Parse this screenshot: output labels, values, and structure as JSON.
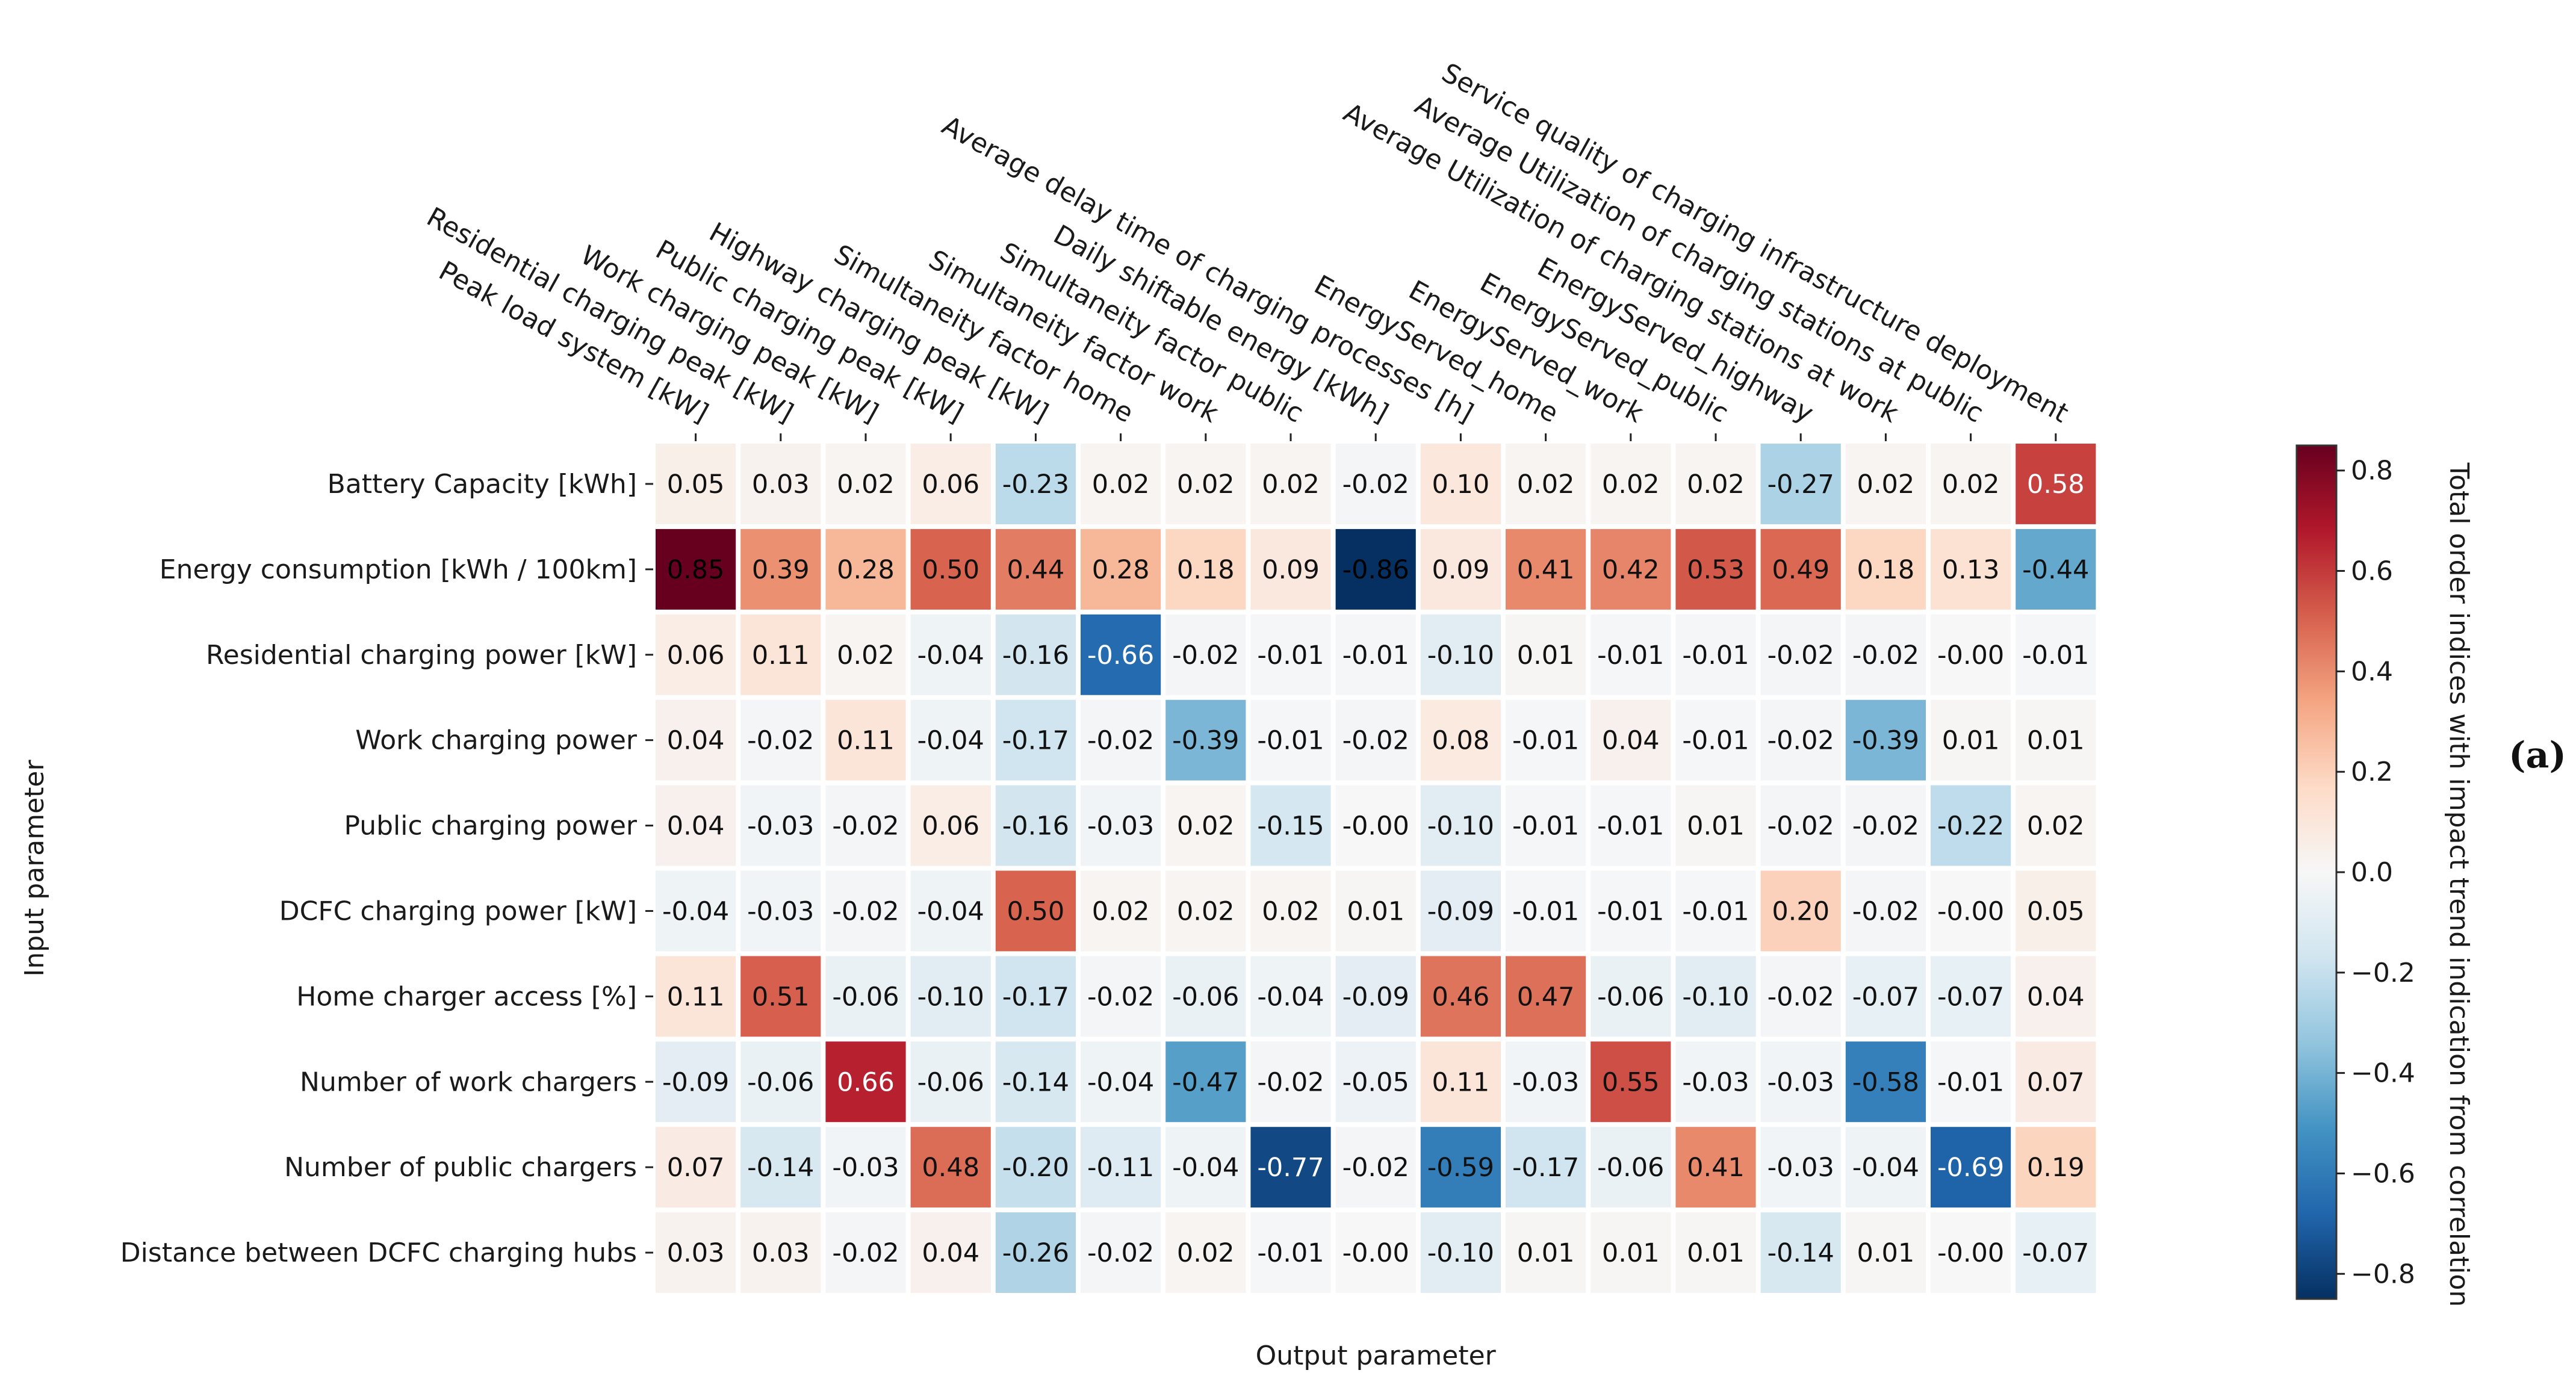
{
  "panel_label": "(a)",
  "chart_data": {
    "type": "heatmap",
    "xlabel": "Output parameter",
    "ylabel": "Input parameter",
    "colorbar_label": "Total order indices with impact trend indication from correlation",
    "colorbar_range": [
      -0.85,
      0.85
    ],
    "colorbar_ticks": [
      -0.8,
      -0.6,
      -0.4,
      -0.2,
      0.0,
      0.2,
      0.4,
      0.6,
      0.8
    ],
    "colorbar_tick_labels": [
      "−0.8",
      "−0.6",
      "−0.4",
      "−0.2",
      "0.0",
      "0.2",
      "0.4",
      "0.6",
      "0.8"
    ],
    "colormap": [
      "#053061",
      "#2166ac",
      "#4393c3",
      "#92c5de",
      "#d1e5f0",
      "#f7f7f7",
      "#fddbc7",
      "#f4a582",
      "#d6604d",
      "#b2182b",
      "#67001f"
    ],
    "columns": [
      "Peak load system [kW]",
      "Residential charging peak [kW]",
      "Work charging peak [kW]",
      "Public charging peak [kW]",
      "Highway charging peak [kW]",
      "Simultaneity factor home",
      "Simultaneity factor work",
      "Simultaneity factor public",
      "Daily shiftable energy [kWh]",
      "Average delay time of charging processes [h]",
      "EnergyServed_home",
      "EnergyServed_work",
      "EnergyServed_public",
      "EnergyServed_highway",
      "Average Utilization of charging stations at work",
      "Average Utilization of charging stations at public",
      "Service quality of charging infrastructure deployment"
    ],
    "rows": [
      "Battery Capacity [kWh]",
      "Energy consumption [kWh / 100km]",
      "Residential charging power [kW]",
      "Work charging power",
      "Public charging power",
      "DCFC charging power [kW]",
      "Home charger access [%]",
      "Number of work chargers",
      "Number of public chargers",
      "Distance between DCFC charging hubs"
    ],
    "values": [
      [
        0.05,
        0.03,
        0.02,
        0.06,
        -0.23,
        0.02,
        0.02,
        0.02,
        -0.02,
        0.1,
        0.02,
        0.02,
        0.02,
        -0.27,
        0.02,
        0.02,
        0.58
      ],
      [
        0.85,
        0.39,
        0.28,
        0.5,
        0.44,
        0.28,
        0.18,
        0.09,
        -0.86,
        0.09,
        0.41,
        0.42,
        0.53,
        0.49,
        0.18,
        0.13,
        -0.44
      ],
      [
        0.06,
        0.11,
        0.02,
        -0.04,
        -0.16,
        -0.66,
        -0.02,
        -0.01,
        -0.01,
        -0.1,
        0.01,
        -0.01,
        -0.01,
        -0.02,
        -0.02,
        -0.0,
        -0.01
      ],
      [
        0.04,
        -0.02,
        0.11,
        -0.04,
        -0.17,
        -0.02,
        -0.39,
        -0.01,
        -0.02,
        0.08,
        -0.01,
        0.04,
        -0.01,
        -0.02,
        -0.39,
        0.01,
        0.01
      ],
      [
        0.04,
        -0.03,
        -0.02,
        0.06,
        -0.16,
        -0.03,
        0.02,
        -0.15,
        -0.0,
        -0.1,
        -0.01,
        -0.01,
        0.01,
        -0.02,
        -0.02,
        -0.22,
        0.02
      ],
      [
        -0.04,
        -0.03,
        -0.02,
        -0.04,
        0.5,
        0.02,
        0.02,
        0.02,
        0.01,
        -0.09,
        -0.01,
        -0.01,
        -0.01,
        0.2,
        -0.02,
        -0.0,
        0.05
      ],
      [
        0.11,
        0.51,
        -0.06,
        -0.1,
        -0.17,
        -0.02,
        -0.06,
        -0.04,
        -0.09,
        0.46,
        0.47,
        -0.06,
        -0.1,
        -0.02,
        -0.07,
        -0.07,
        0.04
      ],
      [
        -0.09,
        -0.06,
        0.66,
        -0.06,
        -0.14,
        -0.04,
        -0.47,
        -0.02,
        -0.05,
        0.11,
        -0.03,
        0.55,
        -0.03,
        -0.03,
        -0.58,
        -0.01,
        0.07
      ],
      [
        0.07,
        -0.14,
        -0.03,
        0.48,
        -0.2,
        -0.11,
        -0.04,
        -0.77,
        -0.02,
        -0.59,
        -0.17,
        -0.06,
        0.41,
        -0.03,
        -0.04,
        -0.69,
        0.19
      ],
      [
        0.03,
        0.03,
        -0.02,
        0.04,
        -0.26,
        -0.02,
        0.02,
        -0.01,
        -0.0,
        -0.1,
        0.01,
        0.01,
        0.01,
        -0.14,
        0.01,
        -0.0,
        -0.07
      ]
    ],
    "labels": [
      [
        "0.05",
        "0.03",
        "0.02",
        "0.06",
        "-0.23",
        "0.02",
        "0.02",
        "0.02",
        "-0.02",
        "0.10",
        "0.02",
        "0.02",
        "0.02",
        "-0.27",
        "0.02",
        "0.02",
        "0.58"
      ],
      [
        "0.85",
        "0.39",
        "0.28",
        "0.50",
        "0.44",
        "0.28",
        "0.18",
        "0.09",
        "-0.86",
        "0.09",
        "0.41",
        "0.42",
        "0.53",
        "0.49",
        "0.18",
        "0.13",
        "-0.44"
      ],
      [
        "0.06",
        "0.11",
        "0.02",
        "-0.04",
        "-0.16",
        "-0.66",
        "-0.02",
        "-0.01",
        "-0.01",
        "-0.10",
        "0.01",
        "-0.01",
        "-0.01",
        "-0.02",
        "-0.02",
        "-0.00",
        "-0.01"
      ],
      [
        "0.04",
        "-0.02",
        "0.11",
        "-0.04",
        "-0.17",
        "-0.02",
        "-0.39",
        "-0.01",
        "-0.02",
        "0.08",
        "-0.01",
        "0.04",
        "-0.01",
        "-0.02",
        "-0.39",
        "0.01",
        "0.01"
      ],
      [
        "0.04",
        "-0.03",
        "-0.02",
        "0.06",
        "-0.16",
        "-0.03",
        "0.02",
        "-0.15",
        "-0.00",
        "-0.10",
        "-0.01",
        "-0.01",
        "0.01",
        "-0.02",
        "-0.02",
        "-0.22",
        "0.02"
      ],
      [
        "-0.04",
        "-0.03",
        "-0.02",
        "-0.04",
        "0.50",
        "0.02",
        "0.02",
        "0.02",
        "0.01",
        "-0.09",
        "-0.01",
        "-0.01",
        "-0.01",
        "0.20",
        "-0.02",
        "-0.00",
        "0.05"
      ],
      [
        "0.11",
        "0.51",
        "-0.06",
        "-0.10",
        "-0.17",
        "-0.02",
        "-0.06",
        "-0.04",
        "-0.09",
        "0.46",
        "0.47",
        "-0.06",
        "-0.10",
        "-0.02",
        "-0.07",
        "-0.07",
        "0.04"
      ],
      [
        "-0.09",
        "-0.06",
        "0.66",
        "-0.06",
        "-0.14",
        "-0.04",
        "-0.47",
        "-0.02",
        "-0.05",
        "0.11",
        "-0.03",
        "0.55",
        "-0.03",
        "-0.03",
        "-0.58",
        "-0.01",
        "0.07"
      ],
      [
        "0.07",
        "-0.14",
        "-0.03",
        "0.48",
        "-0.20",
        "-0.11",
        "-0.04",
        "-0.77",
        "-0.02",
        "-0.59",
        "-0.17",
        "-0.06",
        "0.41",
        "-0.03",
        "-0.04",
        "-0.69",
        "0.19"
      ],
      [
        "0.03",
        "0.03",
        "-0.02",
        "0.04",
        "-0.26",
        "-0.02",
        "0.02",
        "-0.01",
        "-0.00",
        "-0.10",
        "0.01",
        "0.01",
        "0.01",
        "-0.14",
        "0.01",
        "-0.00",
        "-0.07"
      ]
    ],
    "grid": false,
    "legend": "right"
  }
}
